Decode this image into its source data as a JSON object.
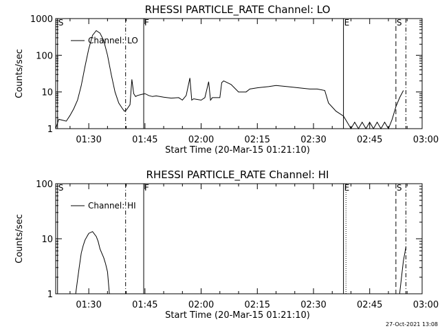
{
  "chart_data": [
    {
      "type": "line",
      "title": "RHESSI PARTICLE_RATE Channel: LO",
      "xlabel": "Start Time (20-Mar-15 01:21:10)",
      "ylabel": "Counts/sec",
      "yscale": "log",
      "ylim": [
        1,
        1000
      ],
      "xlim": [
        "01:21:10",
        "02:59:00"
      ],
      "x_ticks": [
        "01:30",
        "01:45",
        "02:00",
        "02:15",
        "02:30",
        "02:45",
        "03:00"
      ],
      "y_ticks": [
        "1",
        "10",
        "100",
        "1000"
      ],
      "legend": {
        "label": "Channel: LO",
        "position": "top-left"
      },
      "series": [
        {
          "name": "Channel: LO",
          "points": [
            [
              "01:21:10",
              1.0
            ],
            [
              "01:22:00",
              1.8
            ],
            [
              "01:24:00",
              1.6
            ],
            [
              "01:25:00",
              2.3
            ],
            [
              "01:26:00",
              3.5
            ],
            [
              "01:27:00",
              6
            ],
            [
              "01:28:00",
              15
            ],
            [
              "01:29:00",
              50
            ],
            [
              "01:30:00",
              150
            ],
            [
              "01:31:00",
              350
            ],
            [
              "01:32:00",
              470
            ],
            [
              "01:33:00",
              400
            ],
            [
              "01:34:00",
              250
            ],
            [
              "01:35:00",
              100
            ],
            [
              "01:36:00",
              30
            ],
            [
              "01:37:00",
              10
            ],
            [
              "01:38:00",
              5
            ],
            [
              "01:39:00",
              3.5
            ],
            [
              "01:39:30",
              3.0
            ],
            [
              "01:40:00",
              3.2
            ],
            [
              "01:41:00",
              4.5
            ],
            [
              "01:41:30",
              22
            ],
            [
              "01:42:00",
              9
            ],
            [
              "01:42:30",
              7.5
            ],
            [
              "01:43:00",
              8
            ],
            [
              "01:44:00",
              8.5
            ],
            [
              "01:45:00",
              9
            ],
            [
              "01:46:00",
              8
            ],
            [
              "01:47:00",
              7.5
            ],
            [
              "01:48:00",
              7.8
            ],
            [
              "01:50:00",
              7.2
            ],
            [
              "01:52:00",
              6.8
            ],
            [
              "01:54:00",
              7
            ],
            [
              "01:55:00",
              6
            ],
            [
              "01:56:00",
              8
            ],
            [
              "01:57:00",
              24
            ],
            [
              "01:57:30",
              6
            ],
            [
              "01:58:00",
              6.5
            ],
            [
              "02:00:00",
              6
            ],
            [
              "02:01:00",
              7
            ],
            [
              "02:02:00",
              19
            ],
            [
              "02:02:30",
              6
            ],
            [
              "02:03:00",
              7
            ],
            [
              "02:05:00",
              7
            ],
            [
              "02:05:30",
              18
            ],
            [
              "02:06:00",
              20
            ],
            [
              "02:08:00",
              16
            ],
            [
              "02:10:00",
              10
            ],
            [
              "02:12:00",
              10
            ],
            [
              "02:13:00",
              12
            ],
            [
              "02:15:00",
              13
            ],
            [
              "02:18:00",
              14
            ],
            [
              "02:20:00",
              15
            ],
            [
              "02:23:00",
              14
            ],
            [
              "02:26:00",
              13
            ],
            [
              "02:29:00",
              12
            ],
            [
              "02:31:00",
              12
            ],
            [
              "02:33:00",
              11
            ],
            [
              "02:34:00",
              5
            ],
            [
              "02:36:00",
              3
            ],
            [
              "02:38:00",
              2.2
            ],
            [
              "02:39:00",
              1.5
            ],
            [
              "02:40:00",
              1.0
            ],
            [
              "02:41:00",
              1.5
            ],
            [
              "02:42:00",
              1.0
            ],
            [
              "02:43:00",
              1.5
            ],
            [
              "02:44:00",
              1.0
            ],
            [
              "02:45:00",
              1.5
            ],
            [
              "02:46:00",
              1.0
            ],
            [
              "02:47:00",
              1.5
            ],
            [
              "02:48:00",
              1.0
            ],
            [
              "02:49:00",
              1.5
            ],
            [
              "02:50:00",
              1.0
            ],
            [
              "02:51:00",
              1.8
            ],
            [
              "02:52:00",
              4
            ],
            [
              "02:53:00",
              7
            ],
            [
              "02:54:00",
              11
            ]
          ]
        }
      ],
      "vertical_markers": [
        {
          "label": "S",
          "time": "01:21:40",
          "style": "solid"
        },
        {
          "label": "",
          "time": "01:39:50",
          "style": "dash-dot"
        },
        {
          "label": "F",
          "time": "01:44:40",
          "style": "solid"
        },
        {
          "label": "E",
          "time": "02:38:00",
          "style": "solid"
        },
        {
          "label": "S",
          "time": "02:52:00",
          "style": "dashed"
        },
        {
          "label": "",
          "time": "02:54:40",
          "style": "dash-dot"
        }
      ]
    },
    {
      "type": "line",
      "title": "RHESSI PARTICLE_RATE Channel: HI",
      "xlabel": "Start Time (20-Mar-15 01:21:10)",
      "ylabel": "Counts/sec",
      "yscale": "log",
      "ylim": [
        1,
        100
      ],
      "xlim": [
        "01:21:10",
        "02:59:00"
      ],
      "x_ticks": [
        "01:30",
        "01:45",
        "02:00",
        "02:15",
        "02:30",
        "02:45",
        "03:00"
      ],
      "y_ticks": [
        "1",
        "10",
        "100"
      ],
      "legend": {
        "label": "Channel: HI",
        "position": "top-left"
      },
      "series": [
        {
          "name": "Channel: HI",
          "points": [
            [
              "01:26:30",
              1.0
            ],
            [
              "01:27:00",
              1.8
            ],
            [
              "01:27:30",
              3.2
            ],
            [
              "01:28:00",
              5.5
            ],
            [
              "01:28:30",
              7.5
            ],
            [
              "01:29:00",
              9.5
            ],
            [
              "01:30:00",
              12.5
            ],
            [
              "01:31:00",
              13.5
            ],
            [
              "01:32:00",
              11
            ],
            [
              "01:32:30",
              9
            ],
            [
              "01:33:00",
              6.5
            ],
            [
              "01:34:00",
              4.5
            ],
            [
              "01:34:30",
              3.5
            ],
            [
              "01:35:00",
              2.5
            ],
            [
              "01:35:30",
              1.0
            ]
          ]
        },
        {
          "name": "Channel: HI",
          "points": [
            [
              "02:53:00",
              1.0
            ],
            [
              "02:53:40",
              2.5
            ],
            [
              "02:54:00",
              4
            ],
            [
              "02:54:40",
              7
            ]
          ]
        }
      ],
      "vertical_markers": [
        {
          "label": "S",
          "time": "01:21:40",
          "style": "solid"
        },
        {
          "label": "",
          "time": "01:39:50",
          "style": "dash-dot"
        },
        {
          "label": "F",
          "time": "01:44:40",
          "style": "solid"
        },
        {
          "label": "E",
          "time": "02:38:00",
          "style": "solid"
        },
        {
          "label": "",
          "time": "02:38:40",
          "style": "dotted"
        },
        {
          "label": "S",
          "time": "02:52:00",
          "style": "dashed"
        },
        {
          "label": "",
          "time": "02:54:40",
          "style": "dash-dot"
        }
      ]
    }
  ],
  "footer": {
    "timestamp": "27-Oct-2021 13:08"
  }
}
